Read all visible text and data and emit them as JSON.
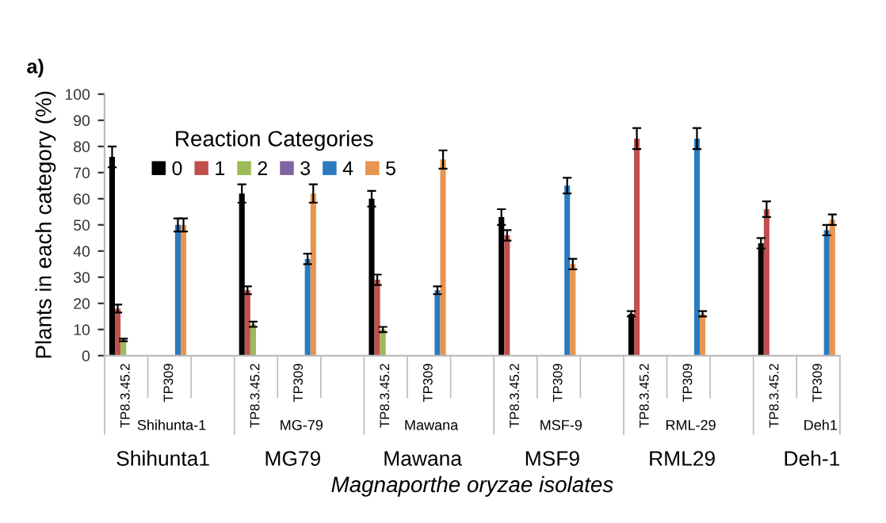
{
  "chart_data": {
    "type": "bar",
    "ylabel": "Plants in each category (%)",
    "xlabel": "Magnaporthe oryzae isolates",
    "legend_title": "Reaction Categories",
    "categories": [
      "TP8.3.45.2",
      "TP309",
      null,
      "TP8.3.45.2",
      "TP309",
      null,
      "TP8.3.45.2",
      "TP309",
      null,
      "TP8.3.45.2",
      "TP309",
      null,
      "TP8.3.45.2",
      "TP309",
      null,
      "TP8.3.45.2",
      "TP309"
    ],
    "series": [
      {
        "name": "0",
        "color": "#000000",
        "values": [
          76,
          null,
          null,
          62,
          null,
          null,
          60,
          null,
          null,
          53,
          null,
          null,
          16,
          null,
          null,
          43,
          null
        ],
        "errors": [
          4,
          null,
          null,
          3.5,
          null,
          null,
          3,
          null,
          null,
          3,
          null,
          null,
          1,
          null,
          null,
          2,
          null
        ]
      },
      {
        "name": "1",
        "color": "#c0504d",
        "values": [
          18,
          null,
          null,
          25,
          null,
          null,
          29,
          null,
          null,
          46,
          null,
          null,
          83,
          null,
          null,
          56,
          null
        ],
        "errors": [
          1.5,
          null,
          null,
          1.5,
          null,
          null,
          2,
          null,
          null,
          2,
          null,
          null,
          4,
          null,
          null,
          3,
          null
        ]
      },
      {
        "name": "2",
        "color": "#9bbb59",
        "values": [
          6,
          null,
          null,
          12,
          null,
          null,
          10,
          null,
          null,
          null,
          null,
          null,
          null,
          null,
          null,
          null,
          null
        ],
        "errors": [
          0.5,
          null,
          null,
          1,
          null,
          null,
          1,
          null,
          null,
          null,
          null,
          null,
          null,
          null,
          null,
          null,
          null
        ]
      },
      {
        "name": "3",
        "color": "#8064a2",
        "values": [
          null,
          null,
          null,
          null,
          null,
          null,
          null,
          null,
          null,
          null,
          null,
          null,
          null,
          null,
          null,
          null,
          null
        ]
      },
      {
        "name": "4",
        "color": "#2a7ac0",
        "values": [
          null,
          50,
          null,
          null,
          37,
          null,
          null,
          25,
          null,
          null,
          65,
          null,
          null,
          83,
          null,
          null,
          48
        ],
        "errors": [
          null,
          2.5,
          null,
          null,
          2,
          null,
          null,
          1.5,
          null,
          null,
          3,
          null,
          null,
          4,
          null,
          null,
          2
        ]
      },
      {
        "name": "5",
        "color": "#e8954f",
        "values": [
          null,
          50,
          null,
          null,
          62,
          null,
          null,
          75,
          null,
          null,
          35,
          null,
          null,
          16,
          null,
          null,
          52
        ],
        "errors": [
          null,
          2.5,
          null,
          null,
          3.5,
          null,
          null,
          3.5,
          null,
          null,
          2,
          null,
          null,
          1,
          null,
          null,
          2
        ]
      }
    ],
    "ylim": [
      0,
      100
    ],
    "yticks": [
      0,
      10,
      20,
      30,
      40,
      50,
      60,
      70,
      80,
      90,
      100
    ],
    "grid": false,
    "legend": "top left",
    "annotations": [
      "a)",
      "Shihunta-1",
      "MG-79",
      "Mawana",
      "MSF-9",
      "RML-29",
      "Deh1",
      "Shihunta1",
      "MG79",
      "Mawana",
      "MSF9",
      "RML29",
      "Deh-1"
    ]
  }
}
